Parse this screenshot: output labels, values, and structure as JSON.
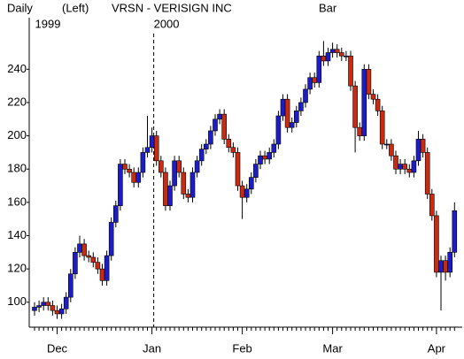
{
  "chart_data": {
    "type": "candlestick",
    "period": "Daily",
    "axis_side": "(Left)",
    "title": "VRSN - VERISIGN INC",
    "style": "Bar",
    "years": [
      "1999",
      "2000"
    ],
    "categories": [
      null,
      null,
      null,
      null,
      null,
      "Dec",
      null,
      null,
      null,
      null,
      null,
      null,
      null,
      null,
      null,
      null,
      null,
      null,
      null,
      null,
      null,
      null,
      null,
      null,
      null,
      null,
      "Jan",
      null,
      null,
      null,
      null,
      null,
      null,
      null,
      null,
      null,
      null,
      null,
      null,
      null,
      null,
      null,
      null,
      null,
      null,
      null,
      "Feb",
      null,
      null,
      null,
      null,
      null,
      null,
      null,
      null,
      null,
      null,
      null,
      null,
      null,
      null,
      null,
      null,
      null,
      null,
      null,
      "Mar",
      null,
      null,
      null,
      null,
      null,
      null,
      null,
      null,
      null,
      null,
      null,
      null,
      null,
      null,
      null,
      null,
      null,
      null,
      null,
      null,
      null,
      null,
      "Apr",
      null,
      null,
      null,
      null
    ],
    "open": [
      95,
      97,
      98,
      100,
      98,
      95,
      93,
      96,
      103,
      117,
      130,
      135,
      128,
      127,
      124,
      120,
      113,
      128,
      148,
      158,
      183,
      180,
      178,
      172,
      178,
      190,
      193,
      200,
      185,
      178,
      158,
      170,
      185,
      178,
      165,
      163,
      178,
      185,
      192,
      195,
      203,
      210,
      213,
      198,
      193,
      190,
      170,
      163,
      168,
      175,
      183,
      188,
      186,
      190,
      195,
      212,
      222,
      205,
      208,
      215,
      220,
      228,
      235,
      232,
      248,
      245,
      250,
      252,
      250,
      248,
      248,
      230,
      205,
      200,
      240,
      225,
      222,
      215,
      195,
      195,
      188,
      180,
      183,
      180,
      178,
      185,
      198,
      190,
      165,
      152,
      118,
      125,
      118,
      130
    ],
    "high": [
      100,
      101,
      103,
      103,
      101,
      98,
      99,
      106,
      120,
      133,
      140,
      138,
      131,
      130,
      127,
      123,
      131,
      151,
      161,
      186,
      186,
      183,
      181,
      181,
      193,
      212,
      205,
      203,
      188,
      181,
      173,
      188,
      188,
      181,
      168,
      181,
      188,
      195,
      198,
      206,
      213,
      216,
      216,
      201,
      196,
      193,
      173,
      171,
      178,
      186,
      191,
      191,
      193,
      198,
      215,
      225,
      225,
      211,
      218,
      223,
      231,
      238,
      238,
      251,
      257,
      253,
      256,
      255,
      253,
      251,
      251,
      233,
      208,
      243,
      243,
      228,
      225,
      218,
      198,
      198,
      191,
      186,
      186,
      183,
      188,
      203,
      201,
      193,
      168,
      155,
      128,
      128,
      133,
      160
    ],
    "low": [
      92,
      94,
      95,
      95,
      92,
      90,
      90,
      93,
      100,
      114,
      127,
      125,
      124,
      121,
      117,
      110,
      110,
      125,
      145,
      155,
      177,
      175,
      169,
      169,
      175,
      187,
      190,
      182,
      175,
      155,
      155,
      167,
      175,
      162,
      160,
      160,
      175,
      182,
      189,
      192,
      200,
      207,
      195,
      190,
      187,
      167,
      150,
      160,
      165,
      172,
      180,
      183,
      183,
      187,
      192,
      209,
      202,
      202,
      205,
      212,
      217,
      225,
      229,
      229,
      242,
      242,
      247,
      247,
      245,
      245,
      227,
      190,
      197,
      197,
      222,
      219,
      212,
      192,
      192,
      185,
      177,
      177,
      177,
      175,
      175,
      182,
      187,
      162,
      149,
      115,
      95,
      113,
      115,
      127
    ],
    "close": [
      97,
      98,
      100,
      98,
      95,
      93,
      96,
      103,
      117,
      130,
      135,
      128,
      127,
      124,
      120,
      113,
      128,
      148,
      158,
      183,
      180,
      178,
      172,
      178,
      190,
      193,
      200,
      185,
      178,
      158,
      170,
      185,
      178,
      165,
      163,
      178,
      185,
      192,
      195,
      203,
      210,
      213,
      198,
      193,
      190,
      170,
      163,
      168,
      175,
      183,
      188,
      186,
      190,
      195,
      212,
      222,
      205,
      208,
      215,
      220,
      228,
      235,
      232,
      248,
      245,
      250,
      252,
      250,
      248,
      248,
      230,
      205,
      200,
      240,
      225,
      222,
      215,
      195,
      195,
      188,
      180,
      183,
      180,
      178,
      185,
      198,
      190,
      165,
      152,
      118,
      125,
      118,
      130,
      155
    ],
    "up_color": "#1c1cc8",
    "down_color": "#cc2a10",
    "ylim": [
      85,
      271
    ],
    "yticks": [
      100,
      120,
      140,
      160,
      180,
      200,
      220,
      240
    ],
    "grid": false
  }
}
